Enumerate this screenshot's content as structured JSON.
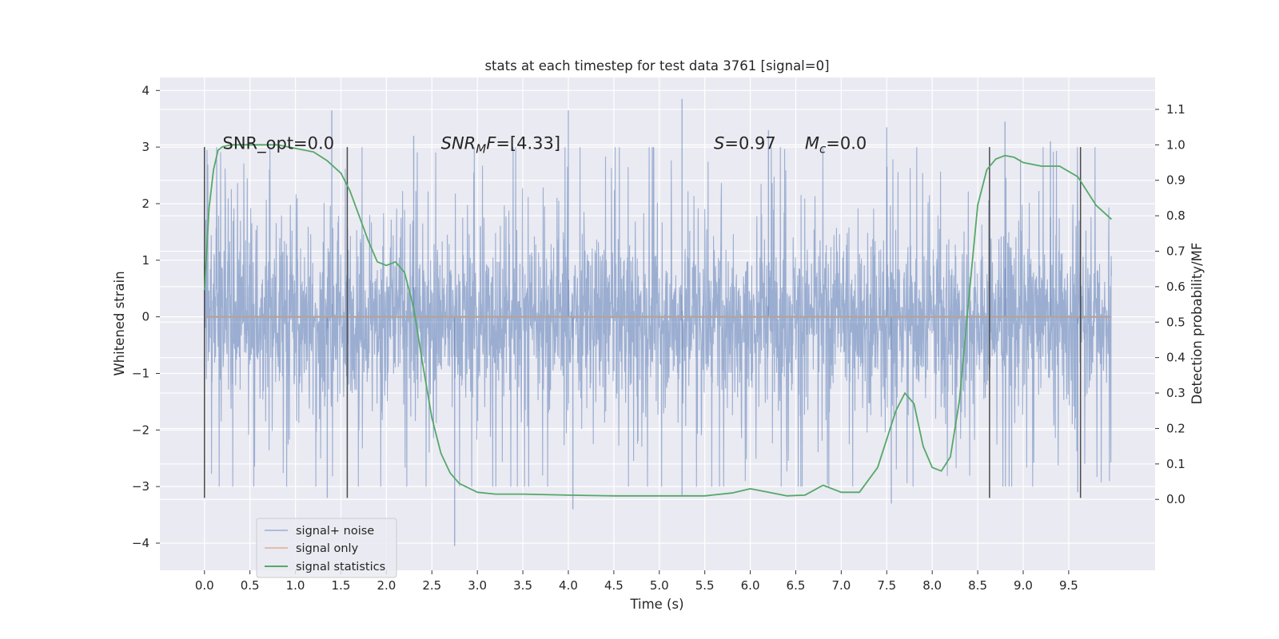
{
  "chart_data": {
    "type": "line",
    "title": "stats at each timestep for test data 3761 [signal=0]",
    "xlabel": "Time (s)",
    "ylabel": "Whitened strain",
    "ylabel_right": "Detection probability/MF",
    "xlim": [
      -0.49,
      10.45
    ],
    "ylim": [
      -4.48,
      4.23
    ],
    "ylim_right": [
      -0.2,
      1.19
    ],
    "x_ticks": [
      "0.0",
      "0.5",
      "1.0",
      "1.5",
      "2.0",
      "2.5",
      "3.0",
      "3.5",
      "4.0",
      "4.5",
      "5.0",
      "5.5",
      "6.0",
      "6.5",
      "7.0",
      "7.5",
      "8.0",
      "8.5",
      "9.0",
      "9.5"
    ],
    "y_ticks": [
      "−4",
      "−3",
      "−2",
      "−1",
      "0",
      "1",
      "2",
      "3",
      "4"
    ],
    "y_ticks_right": [
      "0.0",
      "0.1",
      "0.2",
      "0.3",
      "0.4",
      "0.5",
      "0.6",
      "0.7",
      "0.8",
      "0.9",
      "1.0",
      "1.1"
    ],
    "grid": true,
    "legend_position": "lower-left",
    "annotations": [
      {
        "key": "snr_opt",
        "text": "SNR_opt=0.0",
        "x": 0.2,
        "y": 3.05
      },
      {
        "key": "snr_mf",
        "italic": "SNR",
        "sub": "M",
        "italic2": "F",
        "rest": "=[4.33]",
        "x": 2.6,
        "y": 3.05
      },
      {
        "key": "s",
        "italic": "S",
        "rest": "=0.97",
        "x": 5.6,
        "y": 3.05
      },
      {
        "key": "mc",
        "italic": "M",
        "sub": "c",
        "rest": "=0.0",
        "x": 6.6,
        "y": 3.05
      }
    ],
    "vertical_markers_x": [
      0.0,
      1.57,
      8.63,
      9.63
    ],
    "vertical_markers_range": [
      -3.2,
      3.0
    ],
    "series": [
      {
        "name": "signal+ noise",
        "axis": "left",
        "color": "#4c72b0",
        "style": "noise",
        "x_range": [
          0.0,
          9.97
        ],
        "band": [
          -1.5,
          1.8
        ],
        "peaks_up": [
          [
            1.4,
            3.65
          ],
          [
            4.0,
            3.65
          ],
          [
            5.25,
            3.85
          ],
          [
            7.5,
            3.35
          ],
          [
            8.8,
            3.45
          ],
          [
            2.3,
            3.2
          ],
          [
            6.2,
            3.3
          ],
          [
            9.3,
            3.1
          ]
        ],
        "peaks_down": [
          [
            2.75,
            -4.05
          ],
          [
            4.05,
            -3.4
          ],
          [
            7.55,
            -3.3
          ],
          [
            1.35,
            -3.2
          ],
          [
            5.25,
            -3.15
          ],
          [
            9.6,
            -3.1
          ]
        ]
      },
      {
        "name": "signal only",
        "axis": "left",
        "color": "#dd8452",
        "x": [
          0.0,
          9.97
        ],
        "y": [
          0.0,
          0.0
        ]
      },
      {
        "name": "signal statistics",
        "axis": "right",
        "color": "#55a868",
        "x": [
          0.0,
          0.05,
          0.1,
          0.15,
          0.2,
          0.3,
          0.5,
          0.8,
          1.0,
          1.2,
          1.35,
          1.5,
          1.6,
          1.7,
          1.8,
          1.9,
          2.0,
          2.1,
          2.2,
          2.3,
          2.4,
          2.5,
          2.6,
          2.7,
          2.8,
          3.0,
          3.2,
          3.5,
          4.0,
          4.5,
          5.0,
          5.5,
          5.8,
          6.0,
          6.2,
          6.4,
          6.6,
          6.8,
          7.0,
          7.2,
          7.4,
          7.6,
          7.7,
          7.8,
          7.9,
          8.0,
          8.1,
          8.2,
          8.3,
          8.4,
          8.5,
          8.6,
          8.7,
          8.8,
          8.9,
          9.0,
          9.2,
          9.4,
          9.6,
          9.8,
          9.97
        ],
        "y": [
          0.59,
          0.82,
          0.93,
          0.985,
          0.995,
          1.0,
          1.0,
          1.0,
          0.99,
          0.98,
          0.955,
          0.92,
          0.87,
          0.8,
          0.73,
          0.67,
          0.66,
          0.67,
          0.64,
          0.54,
          0.38,
          0.23,
          0.13,
          0.075,
          0.045,
          0.02,
          0.015,
          0.015,
          0.012,
          0.01,
          0.01,
          0.01,
          0.018,
          0.03,
          0.02,
          0.01,
          0.012,
          0.04,
          0.02,
          0.02,
          0.09,
          0.25,
          0.3,
          0.27,
          0.15,
          0.09,
          0.08,
          0.12,
          0.28,
          0.56,
          0.83,
          0.93,
          0.96,
          0.97,
          0.965,
          0.95,
          0.94,
          0.94,
          0.91,
          0.83,
          0.79
        ]
      }
    ]
  }
}
